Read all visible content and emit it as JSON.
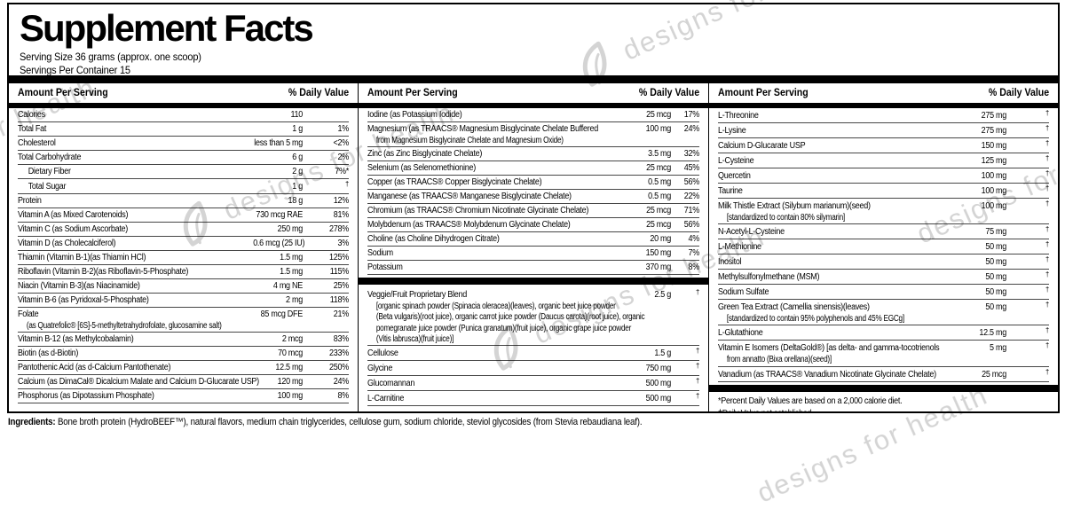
{
  "title": "Supplement Facts",
  "serving": {
    "size": "Serving Size 36 grams (approx. one scoop)",
    "per_container": "Servings Per Container 15"
  },
  "column_header": {
    "amount": "Amount Per Serving",
    "dv": "% Daily Value"
  },
  "columns": [
    {
      "rows": [
        {
          "name": "Calories",
          "amount": "110",
          "dv": ""
        },
        {
          "name": "Total Fat",
          "amount": "1 g",
          "dv": "1%"
        },
        {
          "name": "Cholesterol",
          "amount": "less than 5 mg",
          "dv": "<2%"
        },
        {
          "name": "Total Carbohydrate",
          "amount": "6 g",
          "dv": "2%"
        },
        {
          "name": "Dietary Fiber",
          "amount": "2 g",
          "dv": "7%*",
          "indent": true
        },
        {
          "name": "Total Sugar",
          "amount": "1 g",
          "dv": "†",
          "indent": true
        },
        {
          "name": "Protein",
          "amount": "18 g",
          "dv": "12%"
        },
        {
          "name": "Vitamin A (as Mixed Carotenoids)",
          "amount": "730 mcg RAE",
          "dv": "81%"
        },
        {
          "name": "Vitamin C (as Sodium Ascorbate)",
          "amount": "250 mg",
          "dv": "278%"
        },
        {
          "name": "Vitamin D (as Cholecalciferol)",
          "amount": "0.6 mcg (25 IU)",
          "dv": "3%"
        },
        {
          "name": "Thiamin (Vitamin B-1)(as Thiamin HCl)",
          "amount": "1.5 mg",
          "dv": "125%"
        },
        {
          "name": "Riboflavin (Vitamin B-2)(as Riboflavin-5-Phosphate)",
          "amount": "1.5 mg",
          "dv": "115%"
        },
        {
          "name": "Niacin (Vitamin B-3)(as Niacinamide)",
          "amount": "4 mg NE",
          "dv": "25%"
        },
        {
          "name": "Vitamin B-6 (as Pyridoxal-5-Phosphate)",
          "amount": "2 mg",
          "dv": "118%"
        },
        {
          "name": "Folate",
          "amount": "85 mcg DFE",
          "dv": "21%",
          "sub": [
            "(as Quatrefolic® [6S]-5-methyltetrahydrofolate, glucosamine salt)"
          ]
        },
        {
          "name": "Vitamin B-12 (as Methylcobalamin)",
          "amount": "2 mcg",
          "dv": "83%"
        },
        {
          "name": "Biotin (as d-Biotin)",
          "amount": "70 mcg",
          "dv": "233%"
        },
        {
          "name": "Pantothenic Acid (as d-Calcium Pantothenate)",
          "amount": "12.5 mg",
          "dv": "250%"
        },
        {
          "name": "Calcium (as DimaCal® Dicalcium Malate and Calcium D-Glucarate USP)",
          "amount": "120 mg",
          "dv": "24%"
        },
        {
          "name": "Phosphorus (as Dipotassium Phosphate)",
          "amount": "100 mg",
          "dv": "8%"
        }
      ]
    },
    {
      "rows": [
        {
          "name": "Iodine (as Potassium Iodide)",
          "amount": "25 mcg",
          "dv": "17%"
        },
        {
          "name": "Magnesium (as TRAACS® Magnesium Bisglycinate Chelate Buffered",
          "amount": "100 mg",
          "dv": "24%",
          "sub": [
            "from Magnesium Bisglycinate Chelate and Magnesium Oxide)"
          ]
        },
        {
          "name": "Zinc (as Zinc Bisglycinate Chelate)",
          "amount": "3.5 mg",
          "dv": "32%"
        },
        {
          "name": "Selenium (as Selenomethionine)",
          "amount": "25 mcg",
          "dv": "45%"
        },
        {
          "name": "Copper (as TRAACS® Copper Bisglycinate Chelate)",
          "amount": "0.5 mg",
          "dv": "56%"
        },
        {
          "name": "Manganese (as TRAACS® Manganese Bisglycinate Chelate)",
          "amount": "0.5 mg",
          "dv": "22%"
        },
        {
          "name": "Chromium (as TRAACS® Chromium Nicotinate Glycinate Chelate)",
          "amount": "25 mcg",
          "dv": "71%"
        },
        {
          "name": "Molybdenum (as TRAACS® Molybdenum Glycinate Chelate)",
          "amount": "25 mcg",
          "dv": "56%"
        },
        {
          "name": "Choline (as Choline Dihydrogen Citrate)",
          "amount": "20 mg",
          "dv": "4%"
        },
        {
          "name": "Sodium",
          "amount": "150 mg",
          "dv": "7%"
        },
        {
          "name": "Potassium",
          "amount": "370 mg",
          "dv": "8%"
        },
        {
          "type": "bar"
        },
        {
          "name": "Veggie/Fruit Proprietary Blend",
          "amount": "2.5 g",
          "dv": "†",
          "sub": [
            "[organic spinach powder (Spinacia oleracea)(leaves), organic beet juice powder",
            "(Beta vulgaris)(root juice), organic carrot juice powder (Daucus carota)(root juice), organic",
            "pomegranate juice powder (Punica granatum)(fruit juice), organic grape juice powder",
            "(Vitis labrusca)(fruit juice)]"
          ]
        },
        {
          "name": "Cellulose",
          "amount": "1.5 g",
          "dv": "†"
        },
        {
          "name": "Glycine",
          "amount": "750 mg",
          "dv": "†"
        },
        {
          "name": "Glucomannan",
          "amount": "500 mg",
          "dv": "†"
        },
        {
          "name": "L-Carnitine",
          "amount": "500 mg",
          "dv": "†"
        }
      ]
    },
    {
      "rows": [
        {
          "name": "L-Threonine",
          "amount": "275 mg",
          "dv": "†"
        },
        {
          "name": "L-Lysine",
          "amount": "275 mg",
          "dv": "†"
        },
        {
          "name": "Calcium D-Glucarate USP",
          "amount": "150 mg",
          "dv": "†"
        },
        {
          "name": "L-Cysteine",
          "amount": "125 mg",
          "dv": "†"
        },
        {
          "name": "Quercetin",
          "amount": "100 mg",
          "dv": "†"
        },
        {
          "name": "Taurine",
          "amount": "100 mg",
          "dv": "†"
        },
        {
          "name": "Milk Thistle Extract (Silybum marianum)(seed)",
          "amount": "100 mg",
          "dv": "†",
          "sub": [
            "[standardized to contain 80% silymarin]"
          ]
        },
        {
          "name": "N-Acetyl-L-Cysteine",
          "amount": "75 mg",
          "dv": "†"
        },
        {
          "name": "L-Methionine",
          "amount": "50 mg",
          "dv": "†"
        },
        {
          "name": "Inositol",
          "amount": "50 mg",
          "dv": "†"
        },
        {
          "name": "Methylsulfonylmethane (MSM)",
          "amount": "50 mg",
          "dv": "†"
        },
        {
          "name": "Sodium Sulfate",
          "amount": "50 mg",
          "dv": "†"
        },
        {
          "name": "Green Tea Extract (Camellia sinensis)(leaves)",
          "amount": "50 mg",
          "dv": "†",
          "sub": [
            "[standardized to contain 95% polyphenols and 45% EGCg]"
          ]
        },
        {
          "name": "L-Glutathione",
          "amount": "12.5 mg",
          "dv": "†"
        },
        {
          "name": "Vitamin E Isomers (DeltaGold®) [as delta- and gamma-tocotrienols",
          "amount": "5 mg",
          "dv": "†",
          "sub": [
            "from annatto (Bixa orellana)(seed)]"
          ]
        },
        {
          "name": "Vanadium (as TRAACS® Vanadium Nicotinate Glycinate Chelate)",
          "amount": "25 mcg",
          "dv": "†"
        },
        {
          "type": "bar"
        },
        {
          "type": "note",
          "text": "*Percent Daily Values are based on a 2,000 calorie diet."
        },
        {
          "type": "note",
          "text": "†Daily Value not established."
        }
      ]
    }
  ],
  "ingredients": {
    "label": "Ingredients:",
    "text": " Bone broth protein (HydroBEEF™), natural flavors, medium chain triglycerides, cellulose gum, sodium chloride, steviol glycosides (from Stevia rebaudiana leaf)."
  },
  "watermark": {
    "text": "designs for health",
    "color": "#9a9a9a"
  }
}
